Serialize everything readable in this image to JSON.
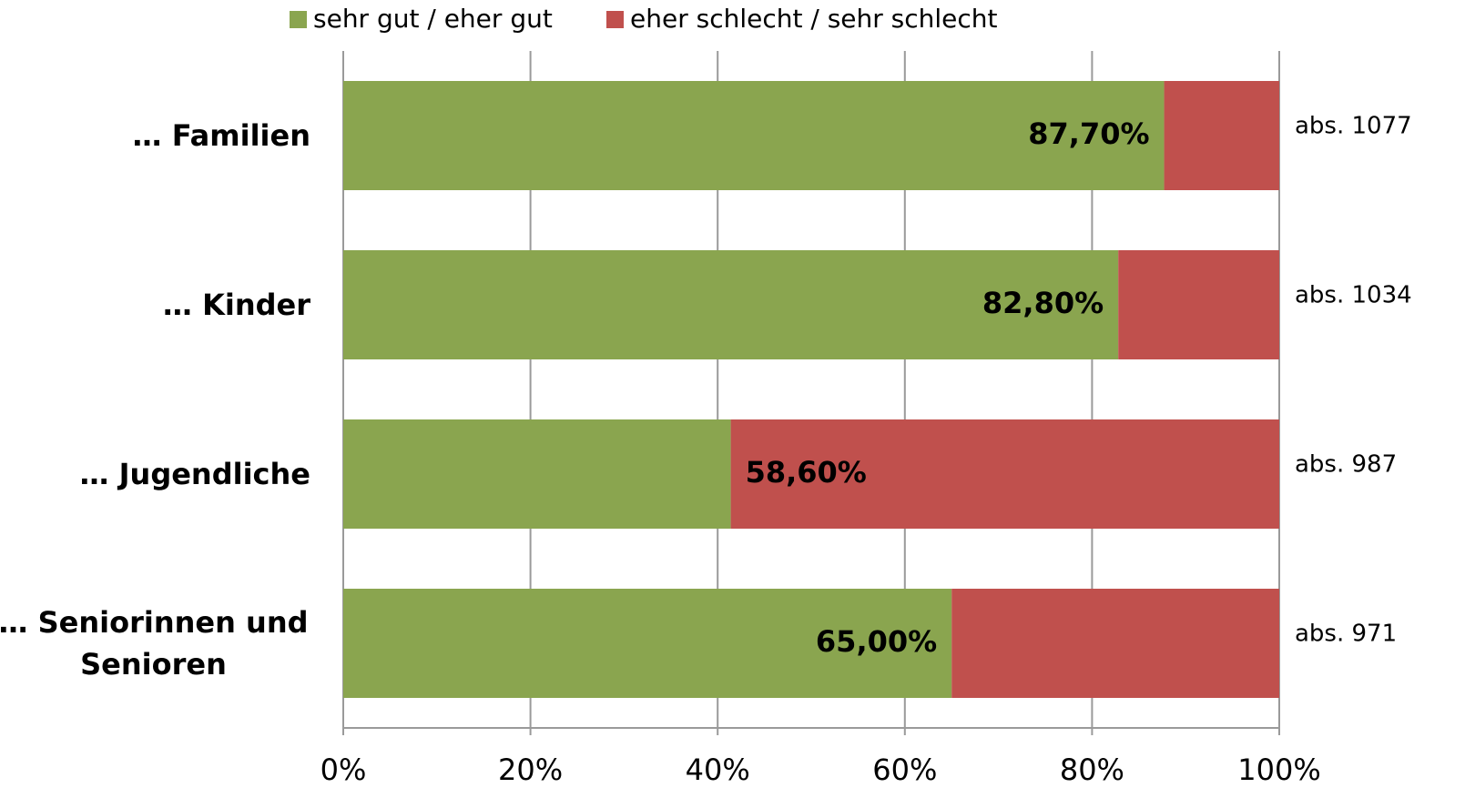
{
  "chart_data": {
    "type": "stacked-bar-horizontal",
    "categories": [
      "… Familien",
      "… Kinder",
      "… Jugendliche",
      "… Seniorinnen und Senioren"
    ],
    "series": [
      {
        "name": "sehr gut / eher gut",
        "color": "#8aa54f",
        "values": [
          87.7,
          82.8,
          41.4,
          65.0
        ],
        "value_labels": [
          "87,70%",
          "82,80%",
          null,
          "65,00%"
        ]
      },
      {
        "name": "eher schlecht / sehr schlecht",
        "color": "#c0504d",
        "values": [
          12.3,
          17.2,
          58.6,
          35.0
        ],
        "value_labels": [
          null,
          null,
          "58,60%",
          null
        ]
      }
    ],
    "annotations": [
      "abs. 1077",
      "abs. 1034",
      "abs. 987",
      "abs. 971"
    ],
    "xlim": [
      0,
      100
    ],
    "xticks": [
      {
        "value": 0,
        "label": "0%"
      },
      {
        "value": 20,
        "label": "20%"
      },
      {
        "value": 40,
        "label": "40%"
      },
      {
        "value": 60,
        "label": "60%"
      },
      {
        "value": 80,
        "label": "80%"
      },
      {
        "value": 100,
        "label": "100%"
      }
    ],
    "grid": true,
    "legend": "top"
  }
}
